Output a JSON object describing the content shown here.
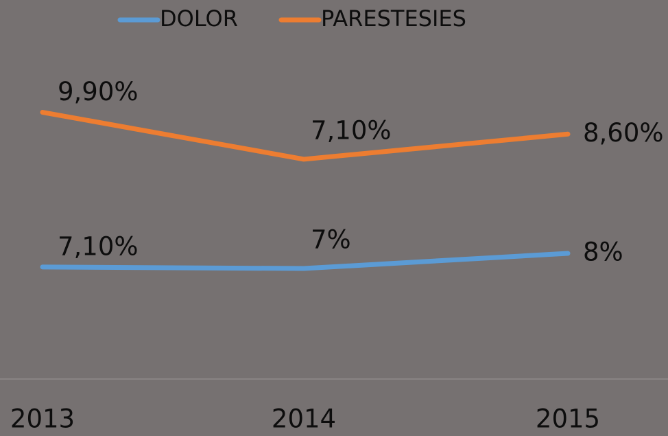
{
  "chart_data": {
    "type": "line",
    "categories": [
      "2013",
      "2014",
      "2015"
    ],
    "series": [
      {
        "name": "DOLOR",
        "color": "#5b9bd5",
        "values": [
          7.1,
          7,
          8
        ],
        "value_labels": [
          "7,10%",
          "7%",
          "8%"
        ],
        "axis": "y2"
      },
      {
        "name": "PARESTESIES",
        "color": "#ed7d31",
        "values": [
          9.9,
          7.1,
          8.6
        ],
        "value_labels": [
          "9,90%",
          "7,10%",
          "8,60%"
        ]
      }
    ],
    "ylim": [
      -6,
      12.5
    ],
    "y2lim": [
      -0.3,
      20.2
    ],
    "legend": "top",
    "grid": false
  }
}
